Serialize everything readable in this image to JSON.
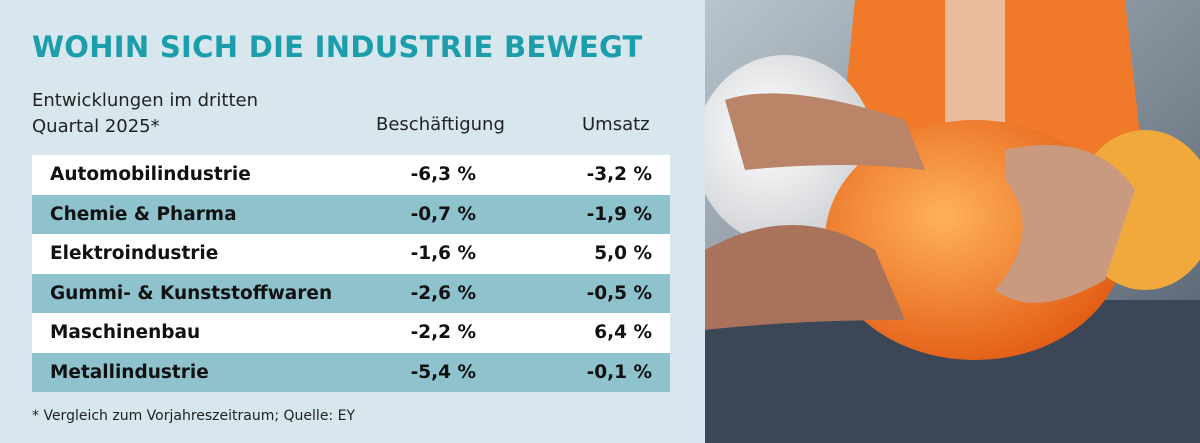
{
  "header": {
    "title": "WOHIN SICH DIE INDUSTRIE BEWEGT",
    "subtitle": "Entwicklungen im dritten Quartal 2025*"
  },
  "table": {
    "columns": [
      "Beschäftigung",
      "Umsatz"
    ],
    "rows": [
      [
        "Automobilindustrie",
        "-6,3 %",
        "-3,2 %"
      ],
      [
        "Chemie & Pharma",
        "-0,7 %",
        "-1,9 %"
      ],
      [
        "Elektroindustrie",
        "-1,6 %",
        "5,0 %"
      ],
      [
        "Gummi- & Kunststoffwaren",
        "-2,6 %",
        "-0,5 %"
      ],
      [
        "Maschinenbau",
        "-2,2 %",
        "6,4 %"
      ],
      [
        "Metallindustrie",
        "-5,4 %",
        "-0,1 %"
      ]
    ]
  },
  "footnote": "* Vergleich zum Vorjahreszeitraum; Quelle: EY"
}
